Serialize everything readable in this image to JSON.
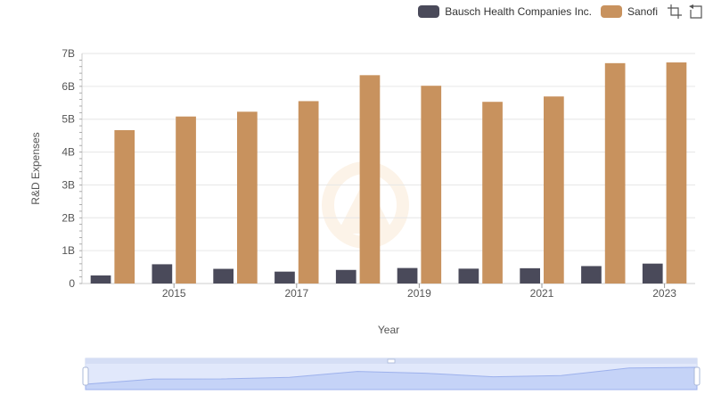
{
  "chart_data": {
    "type": "bar",
    "categories": [
      "2014",
      "2015",
      "2016",
      "2017",
      "2018",
      "2019",
      "2020",
      "2021",
      "2022",
      "2023"
    ],
    "series": [
      {
        "name": "Bausch Health Companies Inc.",
        "color": "#4a4a5a",
        "values": [
          0.246,
          0.5858,
          0.4465,
          0.3617,
          0.4134,
          0.4717,
          0.452,
          0.465,
          0.5304,
          0.6057
        ]
      },
      {
        "name": "Sanofi",
        "color": "#c8925e",
        "values": [
          4.667,
          5.082,
          5.228,
          5.55,
          6.34,
          6.018,
          5.529,
          5.692,
          6.706,
          6.728
        ]
      }
    ],
    "x_tick_labels": [
      "2015",
      "2017",
      "2019",
      "2021",
      "2023"
    ],
    "y_tick_labels": [
      "0",
      "1B",
      "2B",
      "3B",
      "4B",
      "5B",
      "6B",
      "7B"
    ],
    "xlabel": "Year",
    "ylabel": "R&D Expenses",
    "ylim": [
      0,
      7
    ],
    "y_unit": "billion",
    "grid": true,
    "legend_position": "top-right"
  },
  "toolbar": {
    "icons": [
      "box-zoom-icon",
      "reset-zoom-icon"
    ]
  }
}
